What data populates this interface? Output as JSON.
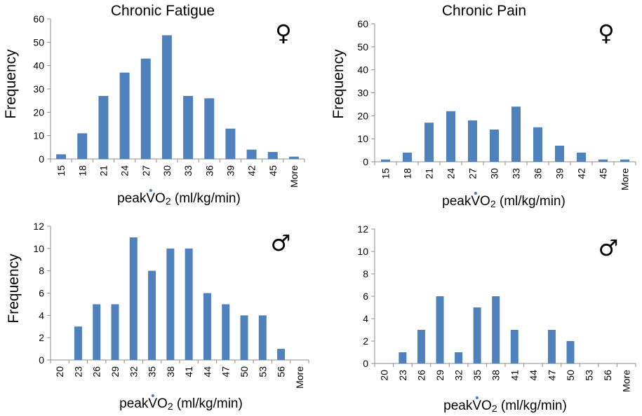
{
  "chart_data": [
    {
      "type": "bar",
      "title": "Chronic Fatigue",
      "symbol": "♀",
      "xlabel": {
        "prefix": "peak",
        "v": "V",
        "o": "O",
        "sub": "2",
        "units": " (ml/kg/min)"
      },
      "ylabel": "Frequency",
      "ylim": [
        0,
        60
      ],
      "yticks": [
        0,
        10,
        20,
        30,
        40,
        50,
        60
      ],
      "categories": [
        "15",
        "18",
        "21",
        "24",
        "27",
        "30",
        "33",
        "36",
        "39",
        "42",
        "45",
        "More"
      ],
      "values": [
        2,
        11,
        27,
        37,
        43,
        53,
        27,
        26,
        13,
        4,
        3,
        1
      ],
      "color": "#4f81bd"
    },
    {
      "type": "bar",
      "title": "Chronic Pain",
      "symbol": "♀",
      "xlabel": {
        "prefix": "peak",
        "v": "V",
        "o": "O",
        "sub": "2",
        "units": " (ml/kg/min)"
      },
      "ylabel": "Frequency",
      "ylim": [
        0,
        60
      ],
      "yticks": [
        0,
        10,
        20,
        30,
        40,
        50,
        60
      ],
      "categories": [
        "15",
        "18",
        "21",
        "24",
        "27",
        "30",
        "33",
        "36",
        "39",
        "42",
        "45",
        "More"
      ],
      "values": [
        1,
        4,
        17,
        22,
        18,
        14,
        24,
        15,
        7,
        4,
        1,
        1
      ],
      "color": "#4f81bd"
    },
    {
      "type": "bar",
      "title": "",
      "symbol": "♂",
      "xlabel": {
        "prefix": "peak",
        "v": "V",
        "o": "O",
        "sub": "2",
        "units": " (ml/kg/min)"
      },
      "ylabel": "Frequency",
      "ylim": [
        0,
        12
      ],
      "yticks": [
        0,
        2,
        4,
        6,
        8,
        10,
        12
      ],
      "categories": [
        "20",
        "23",
        "26",
        "29",
        "32",
        "35",
        "38",
        "41",
        "44",
        "47",
        "50",
        "53",
        "56",
        "More"
      ],
      "values": [
        0,
        3,
        5,
        5,
        11,
        8,
        10,
        10,
        6,
        5,
        4,
        4,
        1,
        0
      ],
      "color": "#4f81bd"
    },
    {
      "type": "bar",
      "title": "",
      "symbol": "♂",
      "xlabel": {
        "prefix": "peak",
        "v": "V",
        "o": "O",
        "sub": "2",
        "units": " (ml/kg/min)"
      },
      "ylabel": "",
      "ylim": [
        0,
        12
      ],
      "yticks": [
        0,
        2,
        4,
        6,
        8,
        10,
        12
      ],
      "categories": [
        "20",
        "23",
        "26",
        "29",
        "32",
        "35",
        "38",
        "41",
        "44",
        "47",
        "50",
        "53",
        "56",
        "More"
      ],
      "values": [
        0,
        1,
        3,
        6,
        1,
        5,
        6,
        3,
        0,
        3,
        2,
        0,
        0,
        0
      ],
      "color": "#4f81bd"
    }
  ]
}
